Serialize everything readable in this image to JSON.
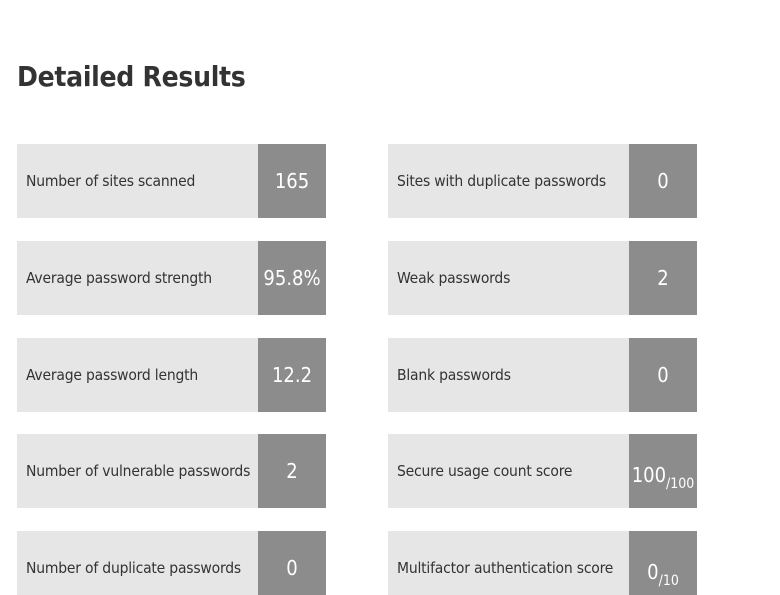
{
  "title": "Detailed Results",
  "left_items": [
    {
      "label": "Number of sites scanned",
      "value": "165"
    },
    {
      "label": "Average password strength",
      "value": "95.8%"
    },
    {
      "label": "Average password length",
      "value": "12.2"
    },
    {
      "label": "Number of vulnerable passwords",
      "value": "2"
    },
    {
      "label": "Number of duplicate passwords",
      "value": "0"
    }
  ],
  "right_items": [
    {
      "label": "Sites with duplicate passwords",
      "value": "0"
    },
    {
      "label": "Weak passwords",
      "value": "2"
    },
    {
      "label": "Blank passwords",
      "value": "0"
    },
    {
      "label": "Secure usage count score",
      "value": "100",
      "denominator": "/100"
    },
    {
      "label": "Multifactor authentication score",
      "value": "0",
      "denominator": "/10"
    }
  ],
  "colors": {
    "card_background": "#e6e6e6",
    "value_background": "#8c8c8c",
    "text": "#333333"
  }
}
